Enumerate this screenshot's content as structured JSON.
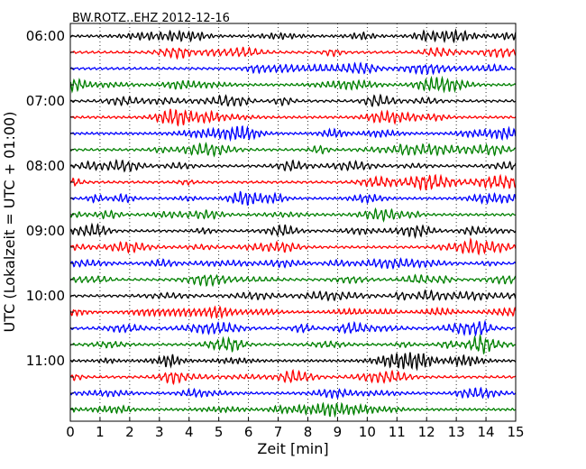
{
  "chart_data": {
    "type": "line",
    "title": "BW.ROTZ..EHZ 2012-12-16",
    "xlabel": "Zeit  [min]",
    "ylabel": "UTC (Lokalzeit = UTC + 01:00)",
    "xlim": [
      0,
      15
    ],
    "x_ticks": [
      "0",
      "1",
      "2",
      "3",
      "4",
      "5",
      "6",
      "7",
      "8",
      "9",
      "10",
      "11",
      "12",
      "13",
      "14",
      "15"
    ],
    "hour_labels": [
      "06:00",
      "07:00",
      "08:00",
      "09:00",
      "10:00",
      "11:00"
    ],
    "row_interval_min": 15,
    "row_count": 24,
    "grid": "vertical dotted at each minute",
    "colors": [
      "#000000",
      "#ff0000",
      "#0000ff",
      "#008000"
    ]
  }
}
